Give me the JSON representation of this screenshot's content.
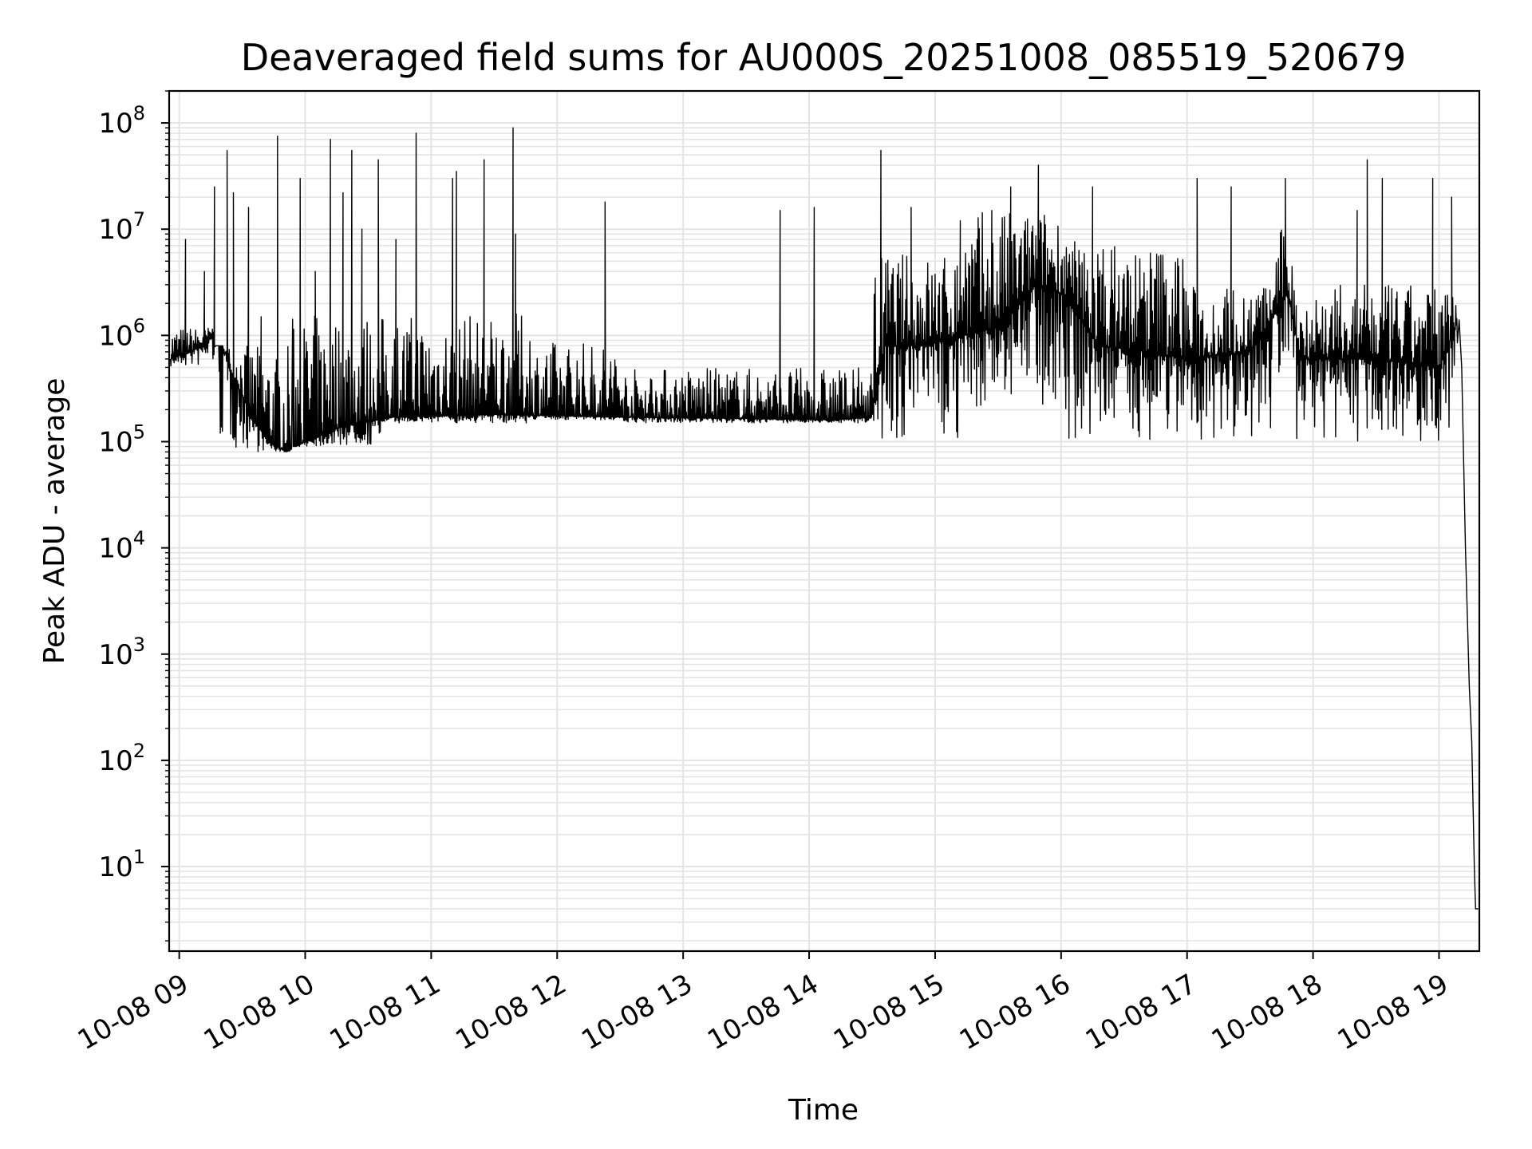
{
  "chart_data": {
    "type": "line",
    "title": "Deaveraged field sums for AU000S_20251008_085519_520679",
    "xlabel": "Time",
    "ylabel": "Peak ADU - average",
    "y_scale": "log",
    "y_decades": [
      1,
      2,
      3,
      4,
      5,
      6,
      7,
      8
    ],
    "x_tick_labels": [
      "10-08 09",
      "10-08 10",
      "10-08 11",
      "10-08 12",
      "10-08 13",
      "10-08 14",
      "10-08 15",
      "10-08 16",
      "10-08 17",
      "10-08 18",
      "10-08 19"
    ],
    "x_tick_hours": [
      9,
      10,
      11,
      12,
      13,
      14,
      15,
      16,
      17,
      18,
      19
    ],
    "xlim_hours": [
      8.92,
      19.32
    ],
    "ylim": [
      1.6,
      200000000
    ],
    "grid": true,
    "line_color": "#000000",
    "baseline_points": [
      {
        "x": 8.93,
        "y": 600000
      },
      {
        "x": 9.2,
        "y": 800000
      },
      {
        "x": 9.3,
        "y": 1200000
      },
      {
        "x": 9.4,
        "y": 500000
      },
      {
        "x": 9.55,
        "y": 200000
      },
      {
        "x": 9.7,
        "y": 100000
      },
      {
        "x": 9.85,
        "y": 80000
      },
      {
        "x": 10.0,
        "y": 100000
      },
      {
        "x": 10.3,
        "y": 140000
      },
      {
        "x": 10.7,
        "y": 170000
      },
      {
        "x": 11.5,
        "y": 180000
      },
      {
        "x": 12.5,
        "y": 170000
      },
      {
        "x": 13.5,
        "y": 165000
      },
      {
        "x": 14.2,
        "y": 160000
      },
      {
        "x": 14.5,
        "y": 170000
      },
      {
        "x": 14.6,
        "y": 800000
      },
      {
        "x": 14.9,
        "y": 800000
      },
      {
        "x": 15.5,
        "y": 1200000
      },
      {
        "x": 15.8,
        "y": 3000000
      },
      {
        "x": 16.0,
        "y": 2500000
      },
      {
        "x": 16.3,
        "y": 800000
      },
      {
        "x": 16.7,
        "y": 700000
      },
      {
        "x": 17.0,
        "y": 600000
      },
      {
        "x": 17.5,
        "y": 700000
      },
      {
        "x": 17.8,
        "y": 2500000
      },
      {
        "x": 17.9,
        "y": 600000
      },
      {
        "x": 18.5,
        "y": 600000
      },
      {
        "x": 19.0,
        "y": 500000
      },
      {
        "x": 19.13,
        "y": 1200000
      },
      {
        "x": 19.16,
        "y": 1400000
      },
      {
        "x": 19.18,
        "y": 500000
      },
      {
        "x": 19.21,
        "y": 10000
      },
      {
        "x": 19.24,
        "y": 500
      },
      {
        "x": 19.26,
        "y": 150
      },
      {
        "x": 19.28,
        "y": 10
      },
      {
        "x": 19.29,
        "y": 4
      },
      {
        "x": 19.31,
        "y": 4
      }
    ],
    "segments": [
      {
        "x0": 8.93,
        "x1": 9.28,
        "low": 500000,
        "high": 1200000
      },
      {
        "x0": 9.28,
        "x1": 9.9,
        "low": 80000,
        "high": 800000
      },
      {
        "x0": 9.9,
        "x1": 10.6,
        "low": 90000,
        "high": 1600000
      },
      {
        "x0": 10.6,
        "x1": 11.8,
        "low": 150000,
        "high": 1600000
      },
      {
        "x0": 11.8,
        "x1": 12.5,
        "low": 160000,
        "high": 900000
      },
      {
        "x0": 12.5,
        "x1": 14.5,
        "low": 150000,
        "high": 500000
      },
      {
        "x0": 14.5,
        "x1": 15.2,
        "low": 100000,
        "high": 6000000
      },
      {
        "x0": 15.2,
        "x1": 16.05,
        "low": 200000,
        "high": 15000000
      },
      {
        "x0": 16.05,
        "x1": 17.0,
        "low": 100000,
        "high": 8000000
      },
      {
        "x0": 17.0,
        "x1": 17.7,
        "low": 100000,
        "high": 3000000
      },
      {
        "x0": 17.7,
        "x1": 17.85,
        "low": 400000,
        "high": 10000000
      },
      {
        "x0": 17.85,
        "x1": 19.15,
        "low": 100000,
        "high": 3000000
      }
    ],
    "spikes": [
      {
        "x": 9.05,
        "y": 8000000
      },
      {
        "x": 9.2,
        "y": 4000000
      },
      {
        "x": 9.28,
        "y": 25000000
      },
      {
        "x": 9.38,
        "y": 55000000
      },
      {
        "x": 9.43,
        "y": 22000000
      },
      {
        "x": 9.55,
        "y": 16000000
      },
      {
        "x": 9.65,
        "y": 1500000
      },
      {
        "x": 9.78,
        "y": 75000000
      },
      {
        "x": 9.96,
        "y": 30000000
      },
      {
        "x": 10.08,
        "y": 4000000
      },
      {
        "x": 10.2,
        "y": 70000000
      },
      {
        "x": 10.3,
        "y": 22000000
      },
      {
        "x": 10.37,
        "y": 55000000
      },
      {
        "x": 10.45,
        "y": 10000000
      },
      {
        "x": 10.58,
        "y": 45000000
      },
      {
        "x": 10.72,
        "y": 8000000
      },
      {
        "x": 10.88,
        "y": 80000000
      },
      {
        "x": 11.17,
        "y": 30000000
      },
      {
        "x": 11.2,
        "y": 35000000
      },
      {
        "x": 11.42,
        "y": 45000000
      },
      {
        "x": 11.65,
        "y": 90000000
      },
      {
        "x": 11.67,
        "y": 9000000
      },
      {
        "x": 12.38,
        "y": 18000000
      },
      {
        "x": 13.77,
        "y": 15000000
      },
      {
        "x": 14.04,
        "y": 16000000
      },
      {
        "x": 14.57,
        "y": 55000000
      },
      {
        "x": 14.81,
        "y": 16000000
      },
      {
        "x": 15.2,
        "y": 12000000
      },
      {
        "x": 15.45,
        "y": 15000000
      },
      {
        "x": 15.6,
        "y": 25000000
      },
      {
        "x": 15.82,
        "y": 40000000
      },
      {
        "x": 16.25,
        "y": 25000000
      },
      {
        "x": 17.08,
        "y": 30000000
      },
      {
        "x": 17.35,
        "y": 25000000
      },
      {
        "x": 17.78,
        "y": 30000000
      },
      {
        "x": 18.35,
        "y": 15000000
      },
      {
        "x": 18.43,
        "y": 45000000
      },
      {
        "x": 18.55,
        "y": 30000000
      },
      {
        "x": 18.95,
        "y": 30000000
      },
      {
        "x": 19.1,
        "y": 20000000
      }
    ]
  }
}
